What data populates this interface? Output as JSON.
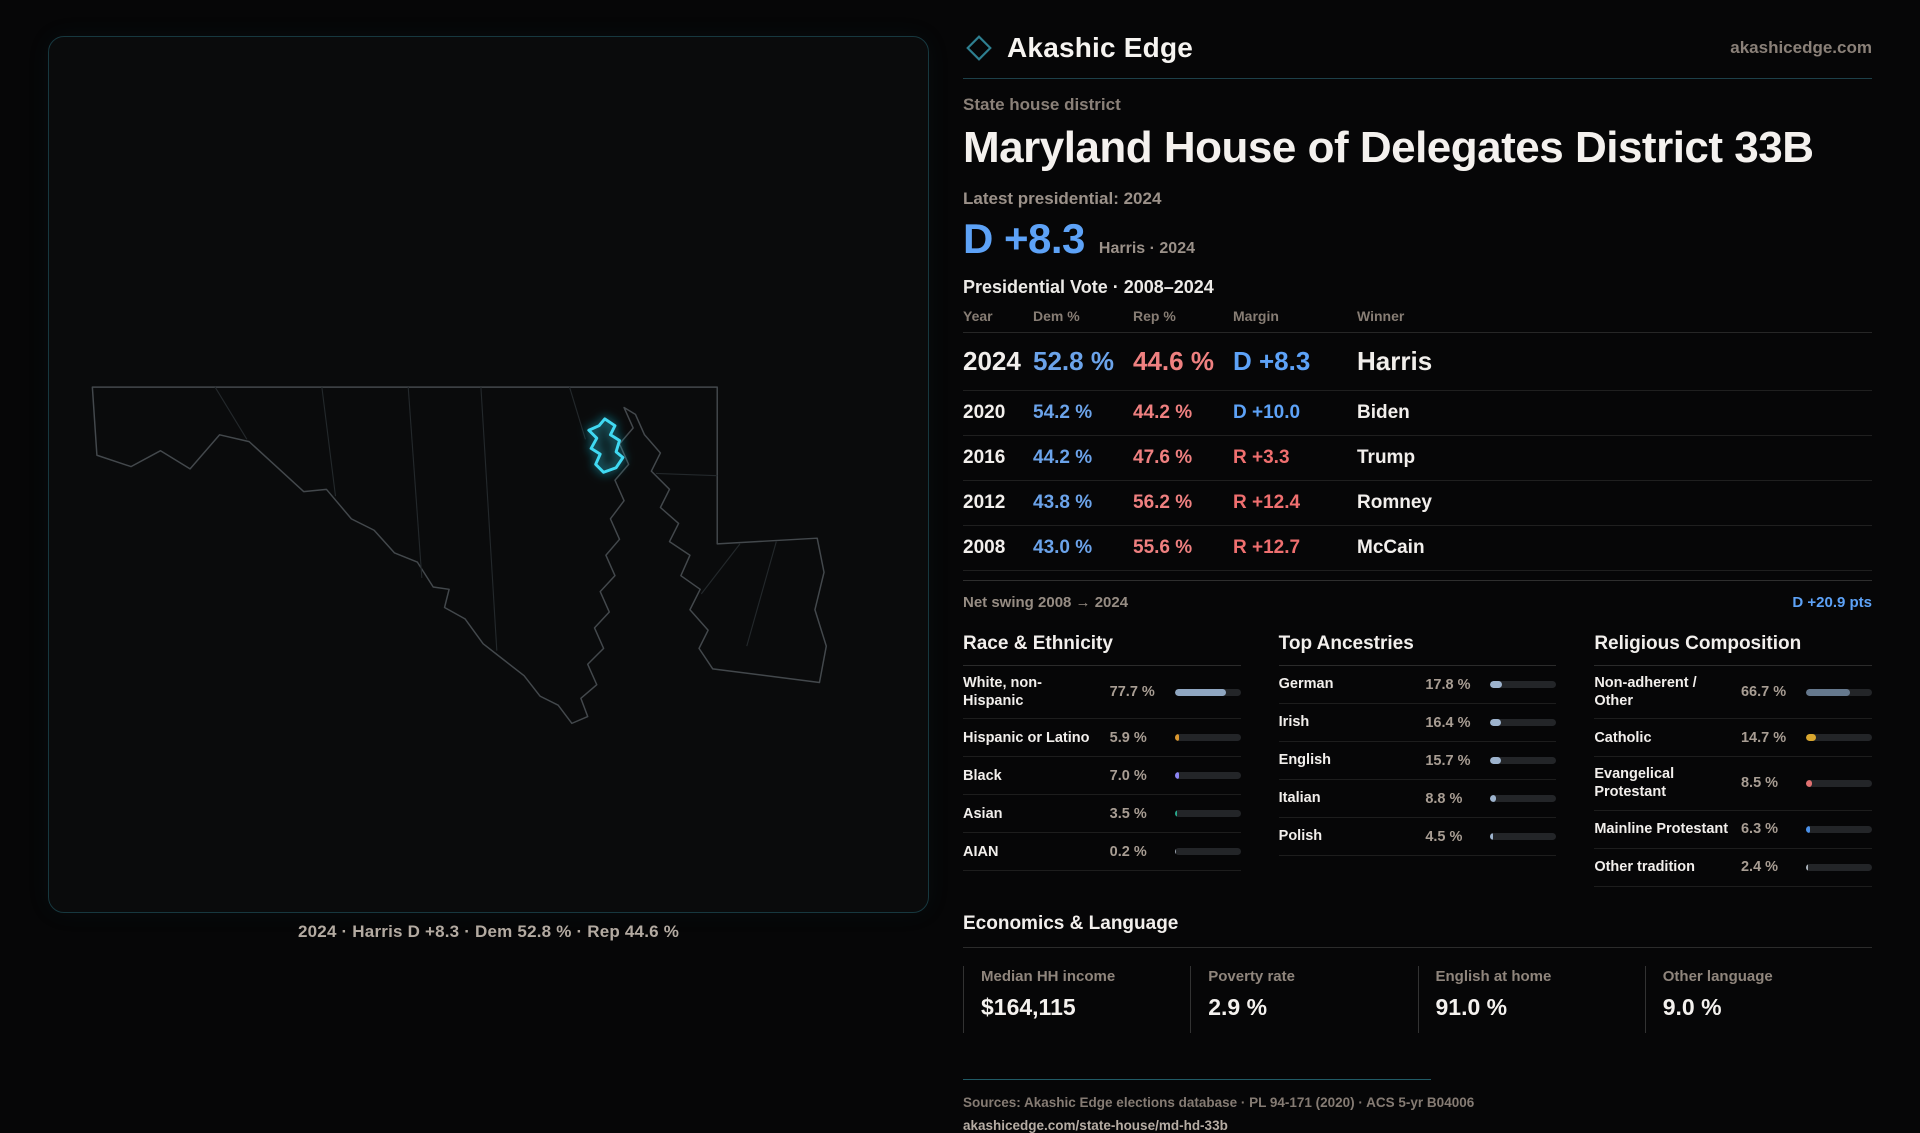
{
  "brand": {
    "name": "Akashic Edge",
    "site": "akashicedge.com"
  },
  "page": {
    "kicker": "State house district",
    "title": "Maryland House of Delegates District 33B",
    "latest_label": "Latest presidential: 2024",
    "headline_margin": "D +8.3",
    "headline_context": "Harris · 2024"
  },
  "vote_table": {
    "title": "Presidential Vote · 2008–2024",
    "columns": {
      "year": "Year",
      "dem": "Dem %",
      "rep": "Rep %",
      "margin": "Margin",
      "winner": "Winner"
    },
    "rows": [
      {
        "year": "2024",
        "dem": "52.8 %",
        "rep": "44.6 %",
        "margin": "D +8.3",
        "party": "D",
        "winner": "Harris"
      },
      {
        "year": "2020",
        "dem": "54.2 %",
        "rep": "44.2 %",
        "margin": "D +10.0",
        "party": "D",
        "winner": "Biden"
      },
      {
        "year": "2016",
        "dem": "44.2 %",
        "rep": "47.6 %",
        "margin": "R +3.3",
        "party": "R",
        "winner": "Trump"
      },
      {
        "year": "2012",
        "dem": "43.8 %",
        "rep": "56.2 %",
        "margin": "R +12.4",
        "party": "R",
        "winner": "Romney"
      },
      {
        "year": "2008",
        "dem": "43.0 %",
        "rep": "55.6 %",
        "margin": "R +12.7",
        "party": "R",
        "winner": "McCain"
      }
    ],
    "net_swing": {
      "label": "Net swing 2008 → 2024",
      "value": "D +20.9 pts"
    }
  },
  "demographics": {
    "race": {
      "title": "Race & Ethnicity",
      "rows": [
        {
          "label": "White, non-Hispanic",
          "value": "77.7 %",
          "pct": 77.7,
          "color": "#8fa6c1"
        },
        {
          "label": "Hispanic or Latino",
          "value": "5.9 %",
          "pct": 5.9,
          "color": "#d9962e"
        },
        {
          "label": "Black",
          "value": "7.0 %",
          "pct": 7.0,
          "color": "#8b84f2"
        },
        {
          "label": "Asian",
          "value": "3.5 %",
          "pct": 3.5,
          "color": "#27a88c"
        },
        {
          "label": "AIAN",
          "value": "0.2 %",
          "pct": 0.2,
          "color": "#9aa3ad"
        }
      ]
    },
    "ancestries": {
      "title": "Top Ancestries",
      "rows": [
        {
          "label": "German",
          "value": "17.8 %",
          "pct": 17.8,
          "color": "#9db3cd"
        },
        {
          "label": "Irish",
          "value": "16.4 %",
          "pct": 16.4,
          "color": "#9db3cd"
        },
        {
          "label": "English",
          "value": "15.7 %",
          "pct": 15.7,
          "color": "#9db3cd"
        },
        {
          "label": "Italian",
          "value": "8.8 %",
          "pct": 8.8,
          "color": "#9db3cd"
        },
        {
          "label": "Polish",
          "value": "4.5 %",
          "pct": 4.5,
          "color": "#9db3cd"
        }
      ]
    },
    "religion": {
      "title": "Religious Composition",
      "rows": [
        {
          "label": "Non-adherent / Other",
          "value": "66.7 %",
          "pct": 66.7,
          "color": "#65788d"
        },
        {
          "label": "Catholic",
          "value": "14.7 %",
          "pct": 14.7,
          "color": "#d9a62e"
        },
        {
          "label": "Evangelical Protestant",
          "value": "8.5 %",
          "pct": 8.5,
          "color": "#e07070"
        },
        {
          "label": "Mainline Protestant",
          "value": "6.3 %",
          "pct": 6.3,
          "color": "#4a90e8"
        },
        {
          "label": "Other tradition",
          "value": "2.4 %",
          "pct": 2.4,
          "color": "#aab2ba"
        }
      ]
    }
  },
  "economics": {
    "title": "Economics & Language",
    "stats": [
      {
        "label": "Median HH income",
        "value": "$164,115"
      },
      {
        "label": "Poverty rate",
        "value": "2.9 %"
      },
      {
        "label": "English at home",
        "value": "91.0 %"
      },
      {
        "label": "Other language",
        "value": "9.0 %"
      }
    ]
  },
  "map": {
    "caption": "2024 · Harris D +8.3 · Dem 52.8 % · Rep 44.6 %"
  },
  "footer": {
    "sources": "Sources: Akashic Edge elections database · PL 94-171 (2020) · ACS 5-yr B04006",
    "permalink": "akashicedge.com/state-house/md-hd-33b"
  },
  "colors": {
    "dem": "#5da2f7",
    "rep": "#ef6f6f",
    "accent_teal": "#2e7f90",
    "highlight": "#3fd9f2"
  }
}
